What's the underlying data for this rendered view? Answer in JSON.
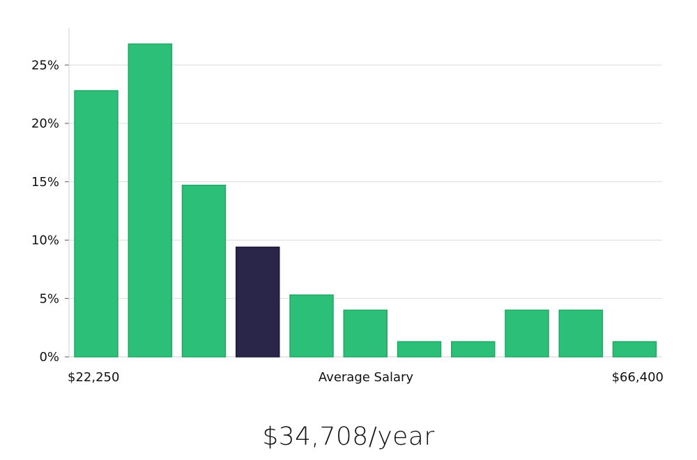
{
  "chart_data": {
    "type": "bar",
    "title": "",
    "xlabel": "Average Salary",
    "ylabel": "",
    "x_min_label": "$22,250",
    "x_max_label": "$66,400",
    "ylim": [
      0,
      28
    ],
    "yticks": [
      0,
      5,
      10,
      15,
      20,
      25
    ],
    "ytick_labels": [
      "0%",
      "5%",
      "10%",
      "15%",
      "20%",
      "25%"
    ],
    "values": [
      22.8,
      26.8,
      14.7,
      9.4,
      5.3,
      4.0,
      1.3,
      1.3,
      4.0,
      4.0,
      1.3
    ],
    "highlight_index": 3,
    "colors": {
      "bar": "#2bbf77",
      "bar_edge": "#22a865",
      "highlight": "#29264a",
      "grid": "#dcdcdc",
      "axis": "#cfcfcf"
    }
  },
  "summary": {
    "salary": "$34,708/year"
  }
}
